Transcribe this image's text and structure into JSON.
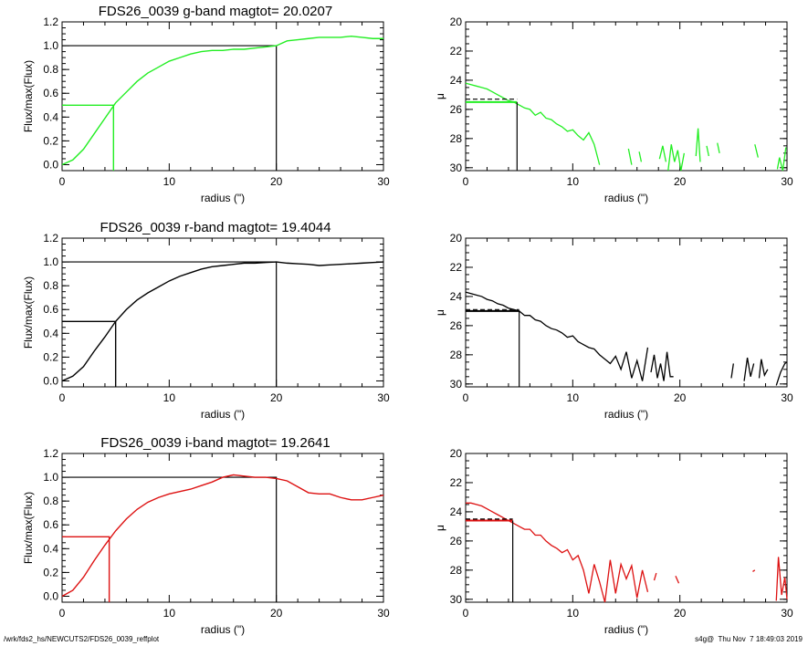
{
  "colors": {
    "g": "#22ee22",
    "r": "#000000",
    "i": "#dd1111",
    "ref": "#000000"
  },
  "footer": {
    "path": "/wrk/fds2_hs/NEWCUTS2/FDS26_0039_reffplot",
    "stamp": "s4g@  Thu Nov  7 18:49:03 2019"
  },
  "chart_data": [
    {
      "type": "line",
      "panel": "growth-curve",
      "band": "g",
      "title": "FDS26_0039 g-band  magtot=     20.0207",
      "xlabel": "radius (\")",
      "ylabel": "Flux/max(Flux)",
      "xlim": [
        0,
        30
      ],
      "ylim": [
        -0.05,
        1.2
      ],
      "xticks": [
        0,
        10,
        20,
        30
      ],
      "yticks": [
        0.0,
        0.2,
        0.4,
        0.6,
        0.8,
        1.0,
        1.2
      ],
      "x": [
        0,
        1,
        2,
        3,
        4,
        5,
        6,
        7,
        8,
        9,
        10,
        11,
        12,
        13,
        14,
        15,
        16,
        17,
        18,
        19,
        20,
        21,
        22,
        23,
        24,
        25,
        26,
        27,
        28,
        29,
        30
      ],
      "y": [
        0,
        0.04,
        0.13,
        0.26,
        0.39,
        0.52,
        0.61,
        0.7,
        0.77,
        0.82,
        0.87,
        0.9,
        0.93,
        0.95,
        0.96,
        0.96,
        0.97,
        0.97,
        0.98,
        0.99,
        1.0,
        1.04,
        1.05,
        1.06,
        1.07,
        1.07,
        1.07,
        1.08,
        1.07,
        1.06,
        1.06
      ],
      "r_half": 4.8,
      "r_total": 20.0,
      "half_level": 0.5,
      "total_level": 1.0
    },
    {
      "type": "line",
      "panel": "surface-brightness",
      "band": "g",
      "xlabel": "radius (\")",
      "ylabel": "μ",
      "xlim": [
        0,
        30
      ],
      "ylim": [
        30.2,
        20
      ],
      "xticks": [
        0,
        10,
        20,
        30
      ],
      "yticks": [
        20,
        22,
        24,
        26,
        28,
        30
      ],
      "segments": [
        {
          "x": [
            0,
            0.5,
            1,
            1.5,
            2,
            2.5,
            3,
            3.5,
            4,
            4.5,
            5,
            5.5,
            6,
            6.5,
            7,
            7.5,
            8,
            8.5,
            9,
            9.5,
            10,
            10.5,
            11,
            11.5,
            12,
            12.5
          ],
          "y": [
            24.2,
            24.3,
            24.4,
            24.5,
            24.6,
            24.8,
            25.0,
            25.2,
            25.4,
            25.5,
            25.7,
            25.9,
            26.0,
            26.4,
            26.2,
            26.6,
            26.7,
            27.0,
            27.2,
            27.5,
            27.4,
            27.8,
            28.1,
            27.6,
            28.4,
            29.8
          ]
        },
        {
          "x": [
            15.2,
            15.5
          ],
          "y": [
            28.7,
            29.8
          ]
        },
        {
          "x": [
            16.2,
            16.4
          ],
          "y": [
            28.9,
            29.6
          ]
        },
        {
          "x": [
            18.1,
            18.4,
            18.7
          ],
          "y": [
            29.4,
            28.5,
            29.6
          ]
        },
        {
          "x": [
            18.9,
            19.2,
            19.5,
            19.8,
            20.1,
            20.4
          ],
          "y": [
            30.2,
            28.4,
            29.6,
            28.8,
            30.2,
            29.0
          ]
        },
        {
          "x": [
            21.5,
            21.7,
            21.9
          ],
          "y": [
            29.2,
            27.3,
            29.6
          ]
        },
        {
          "x": [
            22.5,
            22.7
          ],
          "y": [
            28.5,
            29.2
          ]
        },
        {
          "x": [
            23.5,
            23.7
          ],
          "y": [
            28.3,
            29.0
          ]
        },
        {
          "x": [
            27.0,
            27.3
          ],
          "y": [
            28.4,
            29.3
          ]
        },
        {
          "x": [
            29.1,
            29.3,
            29.6,
            29.9
          ],
          "y": [
            30.1,
            29.3,
            30.2,
            28.6
          ]
        }
      ],
      "mu_eff": 25.5,
      "mu_eff_dashed": 25.3,
      "r_half": 4.8
    },
    {
      "type": "line",
      "panel": "growth-curve",
      "band": "r",
      "title": "FDS26_0039 r-band  magtot=     19.4044",
      "xlabel": "radius (\")",
      "ylabel": "Flux/max(Flux)",
      "xlim": [
        0,
        30
      ],
      "ylim": [
        -0.05,
        1.2
      ],
      "xticks": [
        0,
        10,
        20,
        30
      ],
      "yticks": [
        0.0,
        0.2,
        0.4,
        0.6,
        0.8,
        1.0,
        1.2
      ],
      "x": [
        0,
        1,
        2,
        3,
        4,
        5,
        6,
        7,
        8,
        9,
        10,
        11,
        12,
        13,
        14,
        15,
        16,
        17,
        18,
        19,
        20,
        21,
        22,
        23,
        24,
        25,
        26,
        27,
        28,
        29,
        30
      ],
      "y": [
        0,
        0.04,
        0.12,
        0.25,
        0.37,
        0.5,
        0.6,
        0.68,
        0.74,
        0.79,
        0.84,
        0.88,
        0.91,
        0.94,
        0.96,
        0.97,
        0.98,
        0.99,
        0.99,
        0.995,
        1.0,
        0.99,
        0.985,
        0.98,
        0.97,
        0.975,
        0.98,
        0.985,
        0.99,
        0.995,
        1.0
      ],
      "r_half": 5.0,
      "r_total": 20.0,
      "half_level": 0.5,
      "total_level": 1.0
    },
    {
      "type": "line",
      "panel": "surface-brightness",
      "band": "r",
      "xlabel": "radius (\")",
      "ylabel": "μ",
      "xlim": [
        0,
        30
      ],
      "ylim": [
        30.2,
        20
      ],
      "xticks": [
        0,
        10,
        20,
        30
      ],
      "yticks": [
        20,
        22,
        24,
        26,
        28,
        30
      ],
      "segments": [
        {
          "x": [
            0,
            0.5,
            1,
            1.5,
            2,
            2.5,
            3,
            3.5,
            4,
            4.5,
            5,
            5.5,
            6,
            6.5,
            7,
            7.5,
            8,
            8.5,
            9,
            9.5,
            10,
            10.5,
            11,
            11.5,
            12,
            12.5,
            13,
            13.5,
            14,
            14.5,
            15,
            15.5,
            16,
            16.5,
            17
          ],
          "y": [
            23.7,
            23.8,
            23.9,
            24.0,
            24.2,
            24.3,
            24.5,
            24.6,
            24.8,
            24.9,
            25.0,
            25.3,
            25.3,
            25.6,
            25.7,
            26.0,
            26.2,
            26.3,
            26.5,
            26.8,
            26.7,
            27.1,
            27.3,
            27.5,
            27.6,
            28.0,
            28.3,
            28.6,
            28.1,
            29.0,
            27.8,
            29.6,
            28.4,
            29.8,
            27.5
          ]
        },
        {
          "x": [
            17.3,
            17.6,
            17.9,
            18.2,
            18.5,
            18.8,
            19.1,
            19.4
          ],
          "y": [
            29.2,
            28.0,
            29.6,
            28.6,
            29.8,
            27.8,
            29.5,
            29.5
          ]
        },
        {
          "x": [
            24.8,
            25.0
          ],
          "y": [
            29.6,
            28.6
          ]
        },
        {
          "x": [
            26.0,
            26.3,
            26.6,
            26.9
          ],
          "y": [
            29.8,
            28.2,
            29.5,
            28.6
          ]
        },
        {
          "x": [
            27.4,
            27.6,
            27.9,
            28.2
          ],
          "y": [
            29.6,
            28.3,
            29.4,
            29.0
          ]
        },
        {
          "x": [
            29.0,
            29.4,
            29.8,
            30
          ],
          "y": [
            30.1,
            29.2,
            28.6,
            28.5
          ]
        }
      ],
      "mu_eff": 25.0,
      "mu_eff_dashed": 24.9,
      "r_half": 5.0
    },
    {
      "type": "line",
      "panel": "growth-curve",
      "band": "i",
      "title": "FDS26_0039 i-band  magtot=     19.2641",
      "xlabel": "radius (\")",
      "ylabel": "Flux/max(Flux)",
      "xlim": [
        0,
        30
      ],
      "ylim": [
        -0.05,
        1.2
      ],
      "xticks": [
        0,
        10,
        20,
        30
      ],
      "yticks": [
        0.0,
        0.2,
        0.4,
        0.6,
        0.8,
        1.0,
        1.2
      ],
      "x": [
        0,
        1,
        2,
        3,
        4,
        5,
        6,
        7,
        8,
        9,
        10,
        11,
        12,
        13,
        14,
        15,
        16,
        17,
        18,
        19,
        20,
        21,
        22,
        23,
        24,
        25,
        26,
        27,
        28,
        29,
        30
      ],
      "y": [
        0,
        0.05,
        0.16,
        0.3,
        0.43,
        0.55,
        0.65,
        0.73,
        0.79,
        0.83,
        0.86,
        0.88,
        0.9,
        0.93,
        0.96,
        1.0,
        1.02,
        1.01,
        1.0,
        1.0,
        0.99,
        0.97,
        0.92,
        0.87,
        0.86,
        0.86,
        0.83,
        0.81,
        0.81,
        0.83,
        0.85
      ],
      "r_half": 4.4,
      "r_total": 20.0,
      "half_level": 0.5,
      "total_level": 1.0
    },
    {
      "type": "line",
      "panel": "surface-brightness",
      "band": "i",
      "xlabel": "radius (\")",
      "ylabel": "μ",
      "xlim": [
        0,
        30
      ],
      "ylim": [
        30.2,
        20
      ],
      "xticks": [
        0,
        10,
        20,
        30
      ],
      "yticks": [
        20,
        22,
        24,
        26,
        28,
        30
      ],
      "segments": [
        {
          "x": [
            0,
            0.5,
            1,
            1.5,
            2,
            2.5,
            3,
            3.5,
            4,
            4.5,
            5,
            5.5,
            6,
            6.5,
            7,
            7.5,
            8,
            8.5,
            9,
            9.5,
            10,
            10.5,
            11,
            11.5,
            12,
            12.5,
            13,
            13.5,
            14,
            14.5,
            15,
            15.5,
            16,
            16.5,
            17
          ],
          "y": [
            23.4,
            23.4,
            23.5,
            23.6,
            23.8,
            24.0,
            24.2,
            24.4,
            24.6,
            24.8,
            25.0,
            25.2,
            25.2,
            25.6,
            25.6,
            26.0,
            26.3,
            26.5,
            26.8,
            26.6,
            27.3,
            27.0,
            28.0,
            29.6,
            27.6,
            28.8,
            30.2,
            27.3,
            29.6,
            27.6,
            28.6,
            27.7,
            29.9,
            28.0,
            29.5
          ]
        },
        {
          "x": [
            17.6,
            17.8
          ],
          "y": [
            28.7,
            28.2
          ]
        },
        {
          "x": [
            19.6,
            19.9
          ],
          "y": [
            28.4,
            28.9
          ]
        },
        {
          "x": [
            26.8,
            27.0
          ],
          "y": [
            28.1,
            28.0
          ]
        },
        {
          "x": [
            29.0,
            29.2,
            29.5,
            29.8,
            30
          ],
          "y": [
            30.1,
            27.1,
            29.7,
            28.5,
            30.0
          ]
        }
      ],
      "mu_eff": 24.6,
      "mu_eff_dashed": 24.5,
      "r_half": 4.4
    }
  ]
}
